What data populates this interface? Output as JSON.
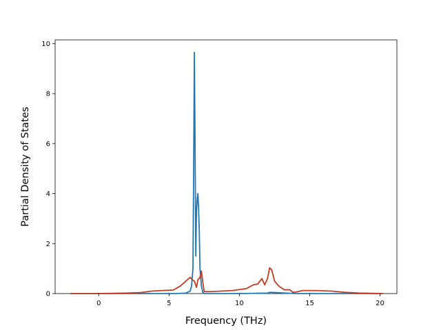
{
  "chart_data": {
    "type": "line",
    "title": "",
    "xlabel": "Frequency (THz)",
    "ylabel": "Partial Density of States",
    "xlim": [
      -3.1,
      21.2
    ],
    "ylim": [
      0,
      10.15
    ],
    "xticks": [
      0,
      5,
      10,
      15,
      20
    ],
    "yticks": [
      0,
      2,
      4,
      6,
      8,
      10
    ],
    "grid": false,
    "legend": "none",
    "series": [
      {
        "color": "#1f77b4",
        "x": [
          -2.0,
          0,
          2,
          4,
          5.5,
          6.2,
          6.5,
          6.6,
          6.7,
          6.75,
          6.8,
          6.85,
          6.9,
          6.95,
          7.0,
          7.05,
          7.1,
          7.15,
          7.2,
          7.3,
          7.4,
          7.5,
          8,
          10,
          12,
          12.2,
          14,
          16,
          18,
          20.2
        ],
        "y": [
          0,
          0,
          0,
          0,
          0,
          0.02,
          0.1,
          0.3,
          1.0,
          5.0,
          9.65,
          6.0,
          1.5,
          3.3,
          3.8,
          4.0,
          3.4,
          2.5,
          1.0,
          0.3,
          0.05,
          0,
          0,
          0,
          0.02,
          0.05,
          0,
          0,
          0,
          0
        ]
      },
      {
        "color": "#c33a1f",
        "x": [
          -2.0,
          0,
          2,
          3,
          3.8,
          4.5,
          5.3,
          5.8,
          6.2,
          6.5,
          6.65,
          6.8,
          6.95,
          7.05,
          7.2,
          7.3,
          7.4,
          7.5,
          8.0,
          9.5,
          10.5,
          11.0,
          11.3,
          11.6,
          11.8,
          12.0,
          12.15,
          12.3,
          12.5,
          12.8,
          13.2,
          13.6,
          13.8,
          14.0,
          14.5,
          15.5,
          16.5,
          17.5,
          18.5,
          20.2
        ],
        "y": [
          0,
          0,
          0.02,
          0.04,
          0.1,
          0.12,
          0.14,
          0.3,
          0.5,
          0.65,
          0.55,
          0.5,
          0.25,
          0.55,
          0.65,
          0.9,
          0.45,
          0.08,
          0.08,
          0.12,
          0.2,
          0.35,
          0.38,
          0.6,
          0.35,
          0.6,
          1.03,
          0.95,
          0.5,
          0.3,
          0.15,
          0.15,
          0.05,
          0.06,
          0.12,
          0.12,
          0.1,
          0.05,
          0.02,
          0
        ]
      }
    ]
  }
}
